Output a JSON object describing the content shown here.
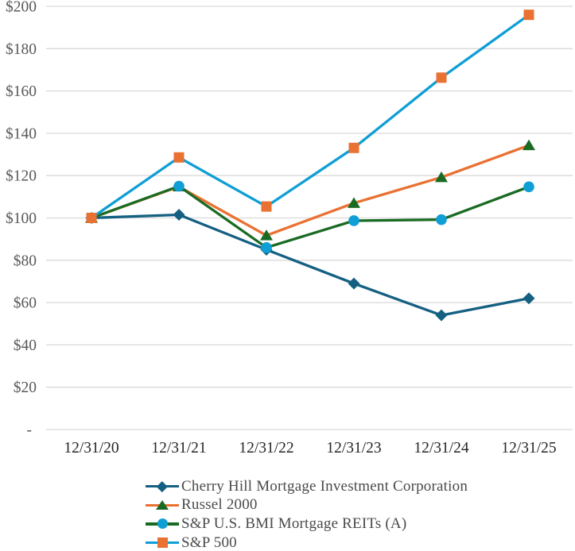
{
  "chart_data": {
    "type": "line",
    "title": "",
    "xlabel": "",
    "ylabel": "",
    "categories": [
      "12/31/20",
      "12/31/21",
      "12/31/22",
      "12/31/23",
      "12/31/24",
      "12/31/25"
    ],
    "series": [
      {
        "name": "Cherry Hill Mortgage Investment Corporation",
        "marker": "diamond",
        "line_color": "#156082",
        "marker_color": "#156082",
        "values": [
          100,
          101.5,
          85,
          69,
          54,
          62
        ]
      },
      {
        "name": "Russel 2000",
        "marker": "triangle",
        "line_color": "#E97132",
        "marker_color": "#196B24",
        "values": [
          100,
          114.8,
          91.7,
          107,
          119.2,
          134.3
        ]
      },
      {
        "name": "S&P U.S. BMI Mortgage REITs (A)",
        "marker": "circle",
        "line_color": "#196B24",
        "marker_color": "#0F9ED5",
        "values": [
          100,
          115,
          86,
          98.7,
          99.2,
          114.7
        ]
      },
      {
        "name": "S&P 500",
        "marker": "square",
        "line_color": "#0F9ED5",
        "marker_color": "#E97132",
        "values": [
          100,
          128.6,
          105.4,
          133.1,
          166.3,
          196
        ]
      }
    ],
    "y_axis": {
      "min": 0,
      "max": 200,
      "tick_step": 20,
      "tick_labels": [
        "$200",
        "$180",
        "$160",
        "$140",
        "$120",
        "$100",
        "$80",
        "$60",
        "$40",
        "$20",
        "-"
      ],
      "tick_values": [
        200,
        180,
        160,
        140,
        120,
        100,
        80,
        60,
        40,
        20,
        0
      ]
    },
    "grid": "horizontal",
    "legend_position": "bottom-left",
    "colors": {
      "gridline": "#D9D9D9",
      "y_tick_text": "#595959",
      "x_tick_text": "#262626",
      "legend_text": "#4a4a4a",
      "background": "#ffffff"
    }
  }
}
